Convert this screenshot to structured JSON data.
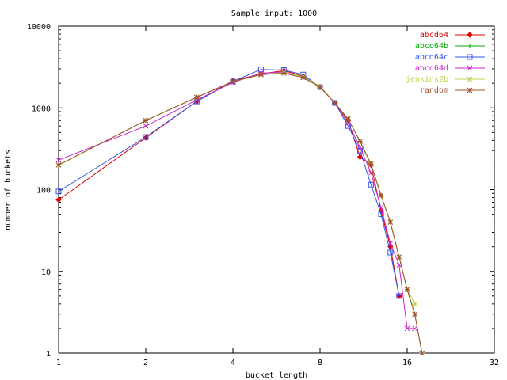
{
  "chart_data": {
    "type": "line",
    "title": "Sample input: 1000",
    "xlabel": "bucket length",
    "ylabel": "number of buckets",
    "x_scale": "log2",
    "y_scale": "log10",
    "xlim": [
      1,
      32
    ],
    "ylim": [
      1,
      10000
    ],
    "x_ticks": [
      1,
      2,
      4,
      8,
      16,
      32
    ],
    "x_tick_labels": [
      "1",
      "2",
      "4",
      "8",
      "16",
      "32"
    ],
    "y_ticks": [
      1,
      10,
      100,
      1000,
      10000
    ],
    "y_tick_labels": [
      "1",
      "10",
      "100",
      "1000",
      "10000"
    ],
    "grid": false,
    "legend_position": "top-right",
    "series": [
      {
        "name": "abcd64",
        "color": "#dd0000",
        "marker": "diamond",
        "points": [
          [
            1,
            75
          ],
          [
            2,
            430
          ],
          [
            3,
            1200
          ],
          [
            4,
            2150
          ],
          [
            5,
            2600
          ],
          [
            6,
            2850
          ],
          [
            7,
            2450
          ],
          [
            8,
            1800
          ],
          [
            9,
            1150
          ],
          [
            10,
            700
          ],
          [
            11,
            250
          ],
          [
            12,
            200
          ],
          [
            13,
            55
          ],
          [
            14,
            20
          ],
          [
            15,
            5
          ]
        ]
      },
      {
        "name": "abcd64b",
        "color": "#00aa00",
        "marker": "plus",
        "points": [
          [
            1,
            200
          ],
          [
            2,
            700
          ],
          [
            3,
            1350
          ],
          [
            4,
            2100
          ],
          [
            5,
            2550
          ],
          [
            6,
            2700
          ],
          [
            7,
            2400
          ],
          [
            8,
            1800
          ],
          [
            9,
            1150
          ],
          [
            10,
            730
          ],
          [
            11,
            390
          ],
          [
            12,
            205
          ],
          [
            13,
            85
          ],
          [
            14,
            40
          ],
          [
            15,
            15
          ],
          [
            16,
            6
          ],
          [
            17,
            3
          ],
          [
            18,
            1
          ]
        ]
      },
      {
        "name": "abcd64c",
        "color": "#3355ee",
        "marker": "square",
        "points": [
          [
            1,
            95
          ],
          [
            2,
            440
          ],
          [
            3,
            1200
          ],
          [
            4,
            2100
          ],
          [
            5,
            2950
          ],
          [
            6,
            2900
          ],
          [
            7,
            2550
          ],
          [
            8,
            1800
          ],
          [
            9,
            1150
          ],
          [
            10,
            600
          ],
          [
            11,
            300
          ],
          [
            12,
            115
          ],
          [
            13,
            50
          ],
          [
            14,
            17
          ],
          [
            15,
            5
          ]
        ]
      },
      {
        "name": "abcd64d",
        "color": "#cc22cc",
        "marker": "cross",
        "points": [
          [
            1,
            230
          ],
          [
            2,
            600
          ],
          [
            3,
            1250
          ],
          [
            4,
            2050
          ],
          [
            5,
            2650
          ],
          [
            6,
            2750
          ],
          [
            7,
            2350
          ],
          [
            8,
            1800
          ],
          [
            9,
            1150
          ],
          [
            10,
            650
          ],
          [
            11,
            330
          ],
          [
            12,
            160
          ],
          [
            13,
            60
          ],
          [
            14,
            22
          ],
          [
            15,
            12
          ],
          [
            16,
            2
          ],
          [
            17,
            2
          ]
        ]
      },
      {
        "name": "jenkins2b",
        "color": "#b8d850",
        "marker": "star",
        "points": [
          [
            1,
            200
          ],
          [
            2,
            700
          ],
          [
            3,
            1350
          ],
          [
            4,
            2100
          ],
          [
            5,
            2550
          ],
          [
            6,
            2700
          ],
          [
            7,
            2400
          ],
          [
            8,
            1850
          ],
          [
            9,
            1150
          ],
          [
            10,
            730
          ],
          [
            11,
            390
          ],
          [
            12,
            205
          ],
          [
            13,
            85
          ],
          [
            14,
            40
          ],
          [
            15,
            15
          ],
          [
            16,
            6
          ],
          [
            17,
            4
          ]
        ]
      },
      {
        "name": "random",
        "color": "#a0522d",
        "marker": "asterisk",
        "points": [
          [
            1,
            200
          ],
          [
            2,
            700
          ],
          [
            3,
            1350
          ],
          [
            4,
            2100
          ],
          [
            5,
            2550
          ],
          [
            6,
            2650
          ],
          [
            7,
            2350
          ],
          [
            8,
            1800
          ],
          [
            9,
            1150
          ],
          [
            10,
            730
          ],
          [
            11,
            390
          ],
          [
            12,
            205
          ],
          [
            13,
            85
          ],
          [
            14,
            40
          ],
          [
            15,
            15
          ],
          [
            16,
            6
          ],
          [
            17,
            3
          ],
          [
            18,
            1
          ]
        ]
      }
    ]
  }
}
